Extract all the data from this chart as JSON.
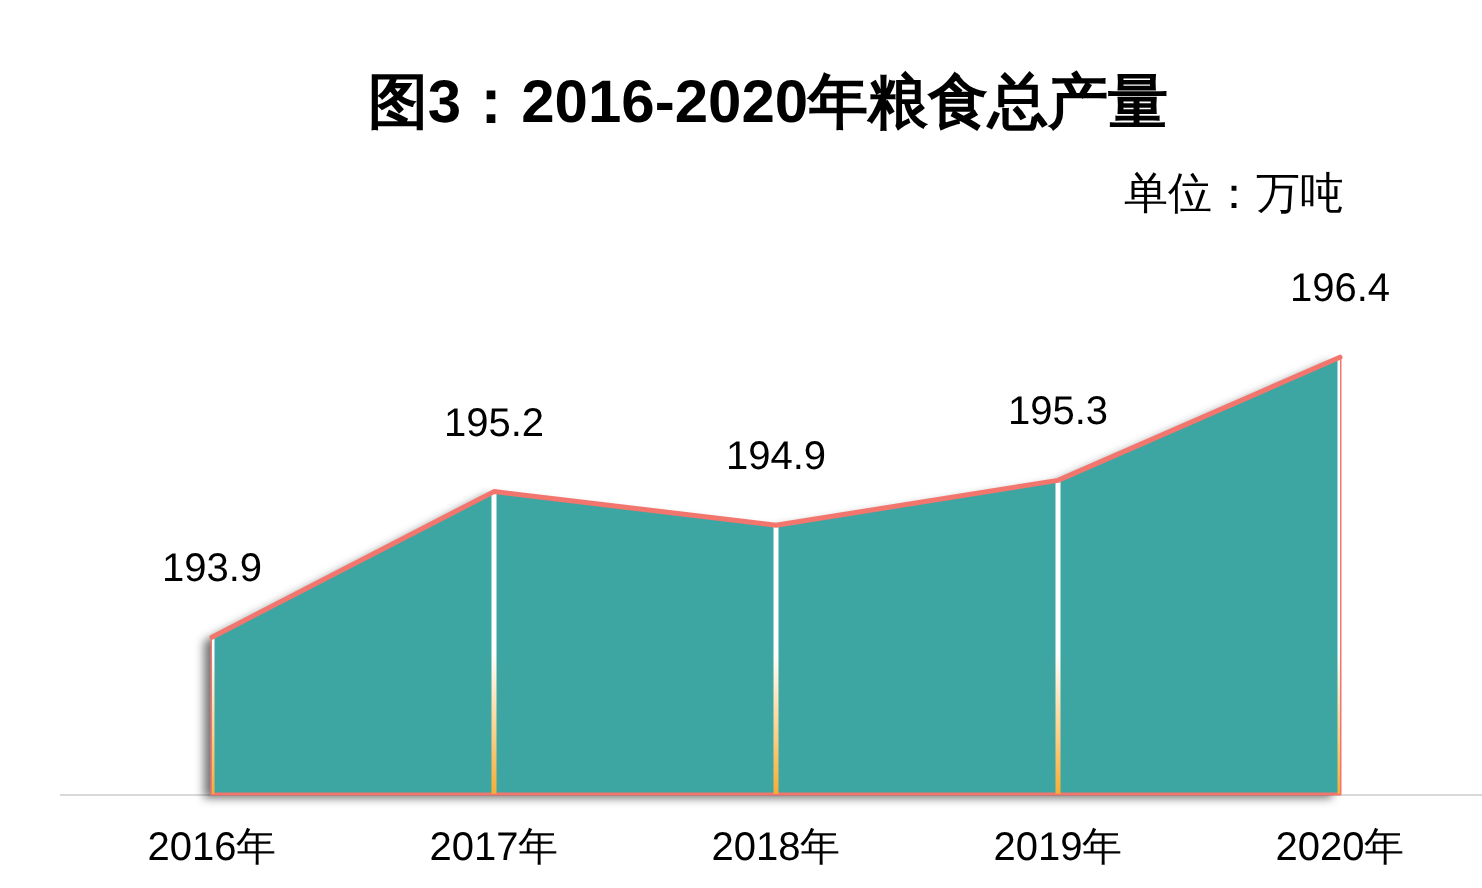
{
  "chart_data": {
    "type": "area",
    "title": "图3：2016-2020年粮食总产量",
    "subtitle": "单位：万吨",
    "categories": [
      "2016年",
      "2017年",
      "2018年",
      "2019年",
      "2020年"
    ],
    "series": [
      {
        "color": "#3ea6a2",
        "values": [
          193.9,
          195.2,
          194.9,
          195.3,
          196.4
        ]
      }
    ],
    "ylim": [
      192.5,
      197
    ],
    "tick_labels": "x",
    "grid": "x",
    "data_labels": true
  }
}
